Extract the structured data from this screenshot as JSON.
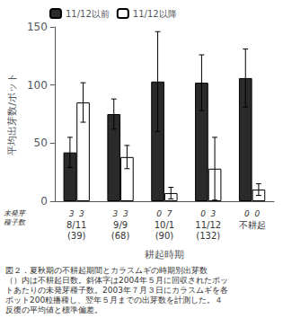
{
  "chart_data": {
    "type": "bar",
    "categories": [
      "8/11\n(39)",
      "9/9\n(68)",
      "10/1\n(90)",
      "11/12\n(132)",
      "不耕起"
    ],
    "series": [
      {
        "name": "11/12以前",
        "color": "#2a2a2a",
        "values": [
          42,
          75,
          103,
          102,
          106
        ],
        "errors": [
          13,
          13,
          43,
          24,
          25
        ]
      },
      {
        "name": "11/12以降",
        "color": "#ffffff",
        "values": [
          85,
          38,
          7,
          28,
          10
        ],
        "errors": [
          17,
          10,
          5,
          27,
          5
        ]
      }
    ],
    "ylabel": "平均出芽数/ポット",
    "xlabel": "耕起時期",
    "ylim": [
      0,
      150
    ],
    "yticks": [
      0,
      50,
      100,
      150
    ],
    "grid": false,
    "legend": "upper left",
    "category_notes": {
      "label": "未発芽\n種子数",
      "labels": [
        "3  3",
        "3  3",
        "0  7",
        "0  3",
        "0  0"
      ]
    },
    "annotations": [
      "図２．夏秋期の不耕起期間とカラスムギの時期別出芽数",
      "（）内は不耕起日数。斜体字は2004年５月に回収されたポッ",
      "トあたりの未発芽種子数。2003年７月３日にカラスムギを各",
      "ポット200粒播種し、翌年５月までの出芽数を計測した。４",
      "反復の平均値と標準偏差。"
    ]
  }
}
